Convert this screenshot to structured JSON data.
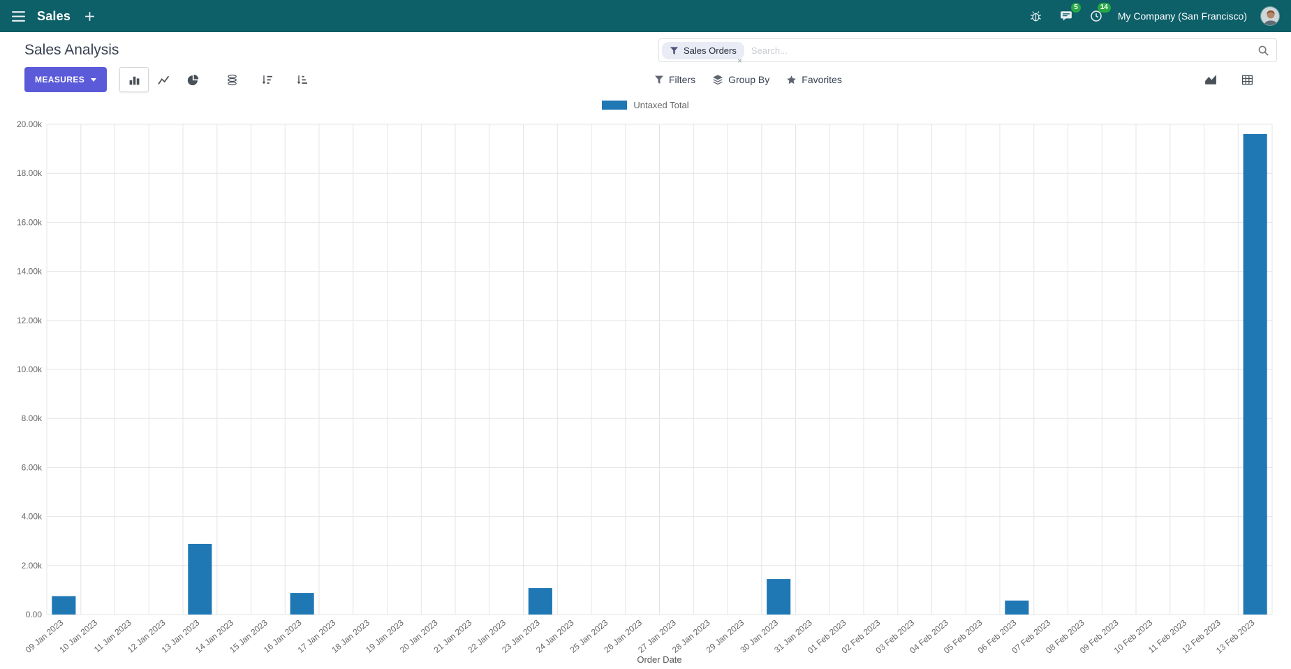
{
  "navbar": {
    "app_name": "Sales",
    "badges": {
      "messages": "5",
      "activities": "14"
    },
    "company": "My Company (San Francisco)"
  },
  "control_panel": {
    "title": "Sales Analysis",
    "search": {
      "facet": "Sales Orders",
      "remove": "×",
      "placeholder": "Search..."
    },
    "measures": "MEASURES",
    "filters": "Filters",
    "group_by": "Group By",
    "favorites": "Favorites"
  },
  "chart_data": {
    "type": "bar",
    "categories": [
      "09 Jan 2023",
      "10 Jan 2023",
      "11 Jan 2023",
      "12 Jan 2023",
      "13 Jan 2023",
      "14 Jan 2023",
      "15 Jan 2023",
      "16 Jan 2023",
      "17 Jan 2023",
      "18 Jan 2023",
      "19 Jan 2023",
      "20 Jan 2023",
      "21 Jan 2023",
      "22 Jan 2023",
      "23 Jan 2023",
      "24 Jan 2023",
      "25 Jan 2023",
      "26 Jan 2023",
      "27 Jan 2023",
      "28 Jan 2023",
      "29 Jan 2023",
      "30 Jan 2023",
      "31 Jan 2023",
      "01 Feb 2023",
      "02 Feb 2023",
      "03 Feb 2023",
      "04 Feb 2023",
      "05 Feb 2023",
      "06 Feb 2023",
      "07 Feb 2023",
      "08 Feb 2023",
      "09 Feb 2023",
      "10 Feb 2023",
      "11 Feb 2023",
      "12 Feb 2023",
      "13 Feb 2023"
    ],
    "series": [
      {
        "name": "Untaxed Total",
        "color": "#1f77b4",
        "values": [
          750,
          0,
          0,
          0,
          2880,
          0,
          0,
          880,
          0,
          0,
          0,
          0,
          0,
          0,
          1080,
          0,
          0,
          0,
          0,
          0,
          0,
          1450,
          0,
          0,
          0,
          0,
          0,
          0,
          570,
          0,
          0,
          0,
          0,
          0,
          0,
          19600
        ]
      }
    ],
    "xlabel": "Order Date",
    "ylabel": "",
    "ylim": [
      0,
      20000
    ],
    "ytick_step": 2000,
    "ytick_labels": [
      "0.00",
      "2.00k",
      "4.00k",
      "6.00k",
      "8.00k",
      "10.00k",
      "12.00k",
      "14.00k",
      "16.00k",
      "18.00k",
      "20.00k"
    ],
    "grid": true,
    "legend_position": "top"
  },
  "colors": {
    "navbar_bg": "#0d5f68",
    "primary_button": "#5b5bd9",
    "bar": "#1f77b4",
    "badge": "#28a745"
  }
}
